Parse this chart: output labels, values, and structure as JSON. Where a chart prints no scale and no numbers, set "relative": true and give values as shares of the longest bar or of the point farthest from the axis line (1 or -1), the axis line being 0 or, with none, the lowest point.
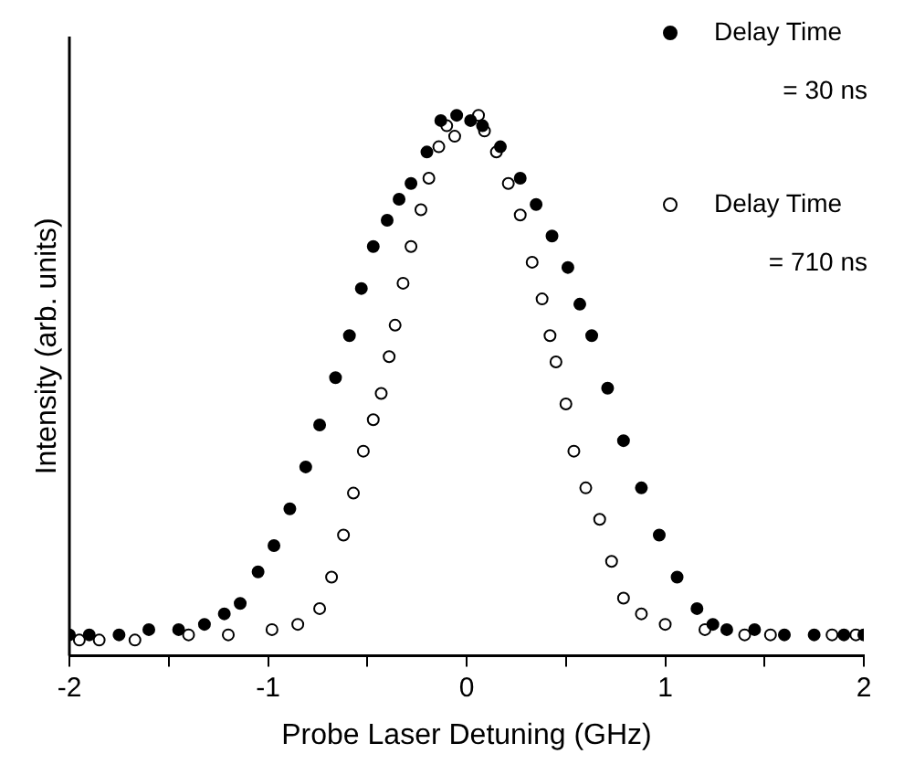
{
  "chart_data": {
    "type": "scatter",
    "relative": true,
    "xlabel": "Probe Laser Detuning (GHz)",
    "ylabel": "Intensity (arb. units)",
    "xlim": [
      -2,
      2
    ],
    "xticks": [
      -2,
      {
        "value": -1.5,
        "label": null
      },
      -1,
      {
        "value": -0.5,
        "label": null
      },
      0,
      {
        "value": 0.5,
        "label": null
      },
      1,
      {
        "value": 1.5,
        "label": null
      },
      2
    ],
    "grid": false,
    "legend": "top right",
    "marker": "circle",
    "series": [
      {
        "name": "Delay Time = 30 ns",
        "color": "#000000",
        "x": [
          -2,
          -1.9,
          -1.75,
          -1.6,
          -1.45,
          -1.32,
          -1.22,
          -1.14,
          -1.05,
          -0.97,
          -0.89,
          -0.81,
          -0.74,
          -0.66,
          -0.59,
          -0.53,
          -0.47,
          -0.4,
          -0.34,
          -0.28,
          -0.2,
          -0.13,
          -0.05,
          0.02,
          0.08,
          0.17,
          0.27,
          0.35,
          0.43,
          0.51,
          0.57,
          0.63,
          0.71,
          0.79,
          0.88,
          0.97,
          1.06,
          1.16,
          1.24,
          1.31,
          1.45,
          1.6,
          1.75,
          1.9,
          2
        ],
        "values": [
          0.01,
          0.01,
          0.01,
          0.02,
          0.02,
          0.03,
          0.05,
          0.07,
          0.13,
          0.18,
          0.25,
          0.33,
          0.41,
          0.5,
          0.58,
          0.67,
          0.75,
          0.8,
          0.84,
          0.87,
          0.93,
          0.99,
          1.0,
          0.99,
          0.98,
          0.94,
          0.88,
          0.83,
          0.77,
          0.71,
          0.64,
          0.58,
          0.48,
          0.38,
          0.29,
          0.2,
          0.12,
          0.06,
          0.03,
          0.02,
          0.02,
          0.01,
          0.01,
          0.01,
          0.01
        ]
      },
      {
        "name": "Delay Time = 710 ns",
        "color": "#000000",
        "x": [
          -1.95,
          -1.85,
          -1.67,
          -1.4,
          -1.2,
          -0.98,
          -0.85,
          -0.74,
          -0.68,
          -0.62,
          -0.57,
          -0.52,
          -0.47,
          -0.43,
          -0.39,
          -0.36,
          -0.32,
          -0.28,
          -0.23,
          -0.19,
          -0.14,
          -0.1,
          -0.06,
          0.06,
          0.09,
          0.15,
          0.21,
          0.27,
          0.33,
          0.38,
          0.42,
          0.45,
          0.5,
          0.54,
          0.6,
          0.67,
          0.73,
          0.79,
          0.88,
          1.0,
          1.2,
          1.4,
          1.53,
          1.84,
          1.96
        ],
        "values": [
          0.0,
          0.0,
          0.0,
          0.01,
          0.01,
          0.02,
          0.03,
          0.06,
          0.12,
          0.2,
          0.28,
          0.36,
          0.42,
          0.47,
          0.54,
          0.6,
          0.68,
          0.75,
          0.82,
          0.88,
          0.94,
          0.98,
          0.96,
          1.0,
          0.97,
          0.93,
          0.87,
          0.81,
          0.72,
          0.65,
          0.58,
          0.53,
          0.45,
          0.36,
          0.29,
          0.23,
          0.15,
          0.08,
          0.05,
          0.03,
          0.02,
          0.01,
          0.01,
          0.01,
          0.01
        ]
      }
    ]
  }
}
